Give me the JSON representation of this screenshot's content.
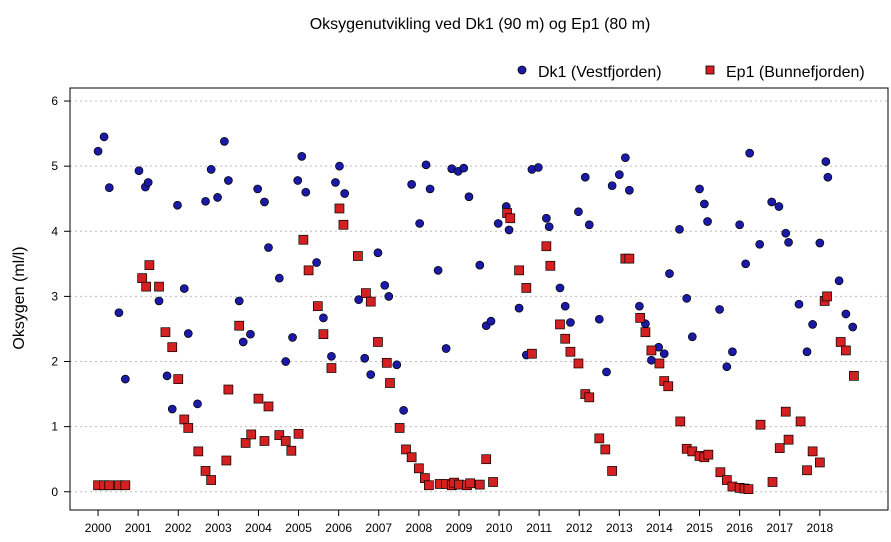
{
  "chart_data": {
    "type": "scatter",
    "title": "Oksygenutvikling ved Dk1 (90 m) og Ep1 (80 m)",
    "xlabel": "",
    "ylabel": "Oksygen (ml/l)",
    "xlim": [
      1999.3,
      2019.7
    ],
    "ylim": [
      -0.28,
      6.2
    ],
    "x_ticks": [
      2000,
      2001,
      2002,
      2003,
      2004,
      2005,
      2006,
      2007,
      2008,
      2009,
      2010,
      2011,
      2012,
      2013,
      2014,
      2015,
      2016,
      2017,
      2018
    ],
    "x_tick_labels": [
      "2000",
      "2001",
      "2002",
      "2003",
      "2004",
      "2005",
      "2006",
      "2007",
      "2008",
      "2009",
      "2010",
      "2011",
      "2012",
      "2013",
      "2014",
      "2015",
      "2016",
      "2017",
      "2018"
    ],
    "y_ticks": [
      0,
      1,
      2,
      3,
      4,
      5,
      6
    ],
    "y_tick_labels": [
      "0",
      "1",
      "2",
      "3",
      "4",
      "5",
      "6"
    ],
    "grid": "horizontal dotted",
    "legend_position": "top-right",
    "series": [
      {
        "name": "Dk1 (Vestfjorden)",
        "marker": "circle",
        "color": "#1a1aa6",
        "x": [
          2000.0,
          2000.15,
          2000.28,
          2000.52,
          2000.68,
          2001.02,
          2001.18,
          2001.25,
          2001.52,
          2001.72,
          2001.85,
          2001.98,
          2002.15,
          2002.25,
          2002.48,
          2002.68,
          2002.82,
          2002.98,
          2003.15,
          2003.25,
          2003.52,
          2003.62,
          2003.8,
          2003.98,
          2004.15,
          2004.25,
          2004.52,
          2004.68,
          2004.85,
          2004.98,
          2005.08,
          2005.18,
          2005.45,
          2005.62,
          2005.82,
          2005.92,
          2006.02,
          2006.15,
          2006.5,
          2006.65,
          2006.8,
          2006.98,
          2007.15,
          2007.25,
          2007.45,
          2007.62,
          2007.82,
          2008.02,
          2008.18,
          2008.28,
          2008.48,
          2008.68,
          2008.82,
          2008.98,
          2009.12,
          2009.25,
          2009.52,
          2009.68,
          2009.8,
          2009.98,
          2010.18,
          2010.25,
          2010.5,
          2010.68,
          2010.82,
          2010.98,
          2011.18,
          2011.25,
          2011.52,
          2011.65,
          2011.78,
          2011.98,
          2012.15,
          2012.25,
          2012.5,
          2012.68,
          2012.82,
          2013.0,
          2013.15,
          2013.25,
          2013.5,
          2013.65,
          2013.8,
          2013.98,
          2014.12,
          2014.25,
          2014.5,
          2014.68,
          2014.82,
          2015.0,
          2015.12,
          2015.2,
          2015.5,
          2015.68,
          2015.82,
          2016.0,
          2016.15,
          2016.25,
          2016.5,
          2016.8,
          2016.98,
          2017.15,
          2017.22,
          2017.48,
          2017.68,
          2017.82,
          2018.0,
          2018.15,
          2018.2,
          2018.48,
          2018.65,
          2018.82
        ],
        "y": [
          5.23,
          5.45,
          4.67,
          2.75,
          1.73,
          4.93,
          4.68,
          4.75,
          2.93,
          1.78,
          1.27,
          4.4,
          3.12,
          2.43,
          1.35,
          4.46,
          4.95,
          4.52,
          5.38,
          4.78,
          2.93,
          2.3,
          2.42,
          4.65,
          4.45,
          3.75,
          3.28,
          2.0,
          2.37,
          4.78,
          5.15,
          4.6,
          3.52,
          2.67,
          2.08,
          4.75,
          5.0,
          4.58,
          2.95,
          2.05,
          1.8,
          3.67,
          3.17,
          3.0,
          1.95,
          1.25,
          4.72,
          4.12,
          5.02,
          4.65,
          3.4,
          2.2,
          4.96,
          4.92,
          4.97,
          4.53,
          3.48,
          2.55,
          2.62,
          4.12,
          4.38,
          4.02,
          2.82,
          2.1,
          4.95,
          4.98,
          4.2,
          4.07,
          3.13,
          2.85,
          2.6,
          4.3,
          4.83,
          4.1,
          2.65,
          1.84,
          4.7,
          4.87,
          5.13,
          4.63,
          2.85,
          2.58,
          2.02,
          2.22,
          2.12,
          3.35,
          4.03,
          2.97,
          2.38,
          4.65,
          4.42,
          4.15,
          2.8,
          1.92,
          2.15,
          4.1,
          3.5,
          5.2,
          3.8,
          4.45,
          4.38,
          3.97,
          3.83,
          2.88,
          2.15,
          2.57,
          3.82,
          5.07,
          4.83,
          3.24,
          2.73,
          2.53
        ]
      },
      {
        "name": "Ep1 (Bunnefjorden)",
        "marker": "square",
        "color": "#d42020",
        "x": [
          2000.0,
          2000.15,
          2000.28,
          2000.52,
          2000.68,
          2001.1,
          2001.2,
          2001.28,
          2001.52,
          2001.68,
          2001.85,
          2002.0,
          2002.15,
          2002.25,
          2002.5,
          2002.68,
          2002.82,
          2003.2,
          2003.25,
          2003.52,
          2003.68,
          2003.82,
          2004.0,
          2004.15,
          2004.25,
          2004.52,
          2004.68,
          2004.82,
          2005.0,
          2005.12,
          2005.25,
          2005.48,
          2005.62,
          2005.82,
          2006.02,
          2006.12,
          2006.48,
          2006.68,
          2006.8,
          2006.98,
          2007.2,
          2007.28,
          2007.52,
          2007.68,
          2007.82,
          2008.0,
          2008.15,
          2008.25,
          2008.52,
          2008.68,
          2008.82,
          2008.88,
          2009.0,
          2009.2,
          2009.28,
          2009.52,
          2009.68,
          2009.85,
          2010.2,
          2010.28,
          2010.5,
          2010.68,
          2010.82,
          2011.18,
          2011.28,
          2011.52,
          2011.65,
          2011.78,
          2011.98,
          2012.15,
          2012.25,
          2012.5,
          2012.65,
          2012.82,
          2013.15,
          2013.25,
          2013.52,
          2013.65,
          2013.8,
          2014.0,
          2014.12,
          2014.22,
          2014.52,
          2014.68,
          2014.82,
          2015.0,
          2015.12,
          2015.22,
          2015.52,
          2015.68,
          2015.82,
          2016.0,
          2016.12,
          2016.22,
          2016.52,
          2016.82,
          2017.0,
          2017.15,
          2017.22,
          2017.52,
          2017.68,
          2017.82,
          2018.0,
          2018.12,
          2018.18,
          2018.52,
          2018.65,
          2018.85
        ],
        "y": [
          0.1,
          0.1,
          0.1,
          0.1,
          0.1,
          3.28,
          3.15,
          3.48,
          3.15,
          2.45,
          2.22,
          1.73,
          1.11,
          0.98,
          0.62,
          0.32,
          0.18,
          0.48,
          1.57,
          2.55,
          0.75,
          0.88,
          1.43,
          0.78,
          1.31,
          0.87,
          0.78,
          0.63,
          0.89,
          3.87,
          3.4,
          2.85,
          2.42,
          1.9,
          4.35,
          4.1,
          3.62,
          3.05,
          2.92,
          2.3,
          1.98,
          1.67,
          0.98,
          0.65,
          0.53,
          0.36,
          0.21,
          0.1,
          0.12,
          0.12,
          0.1,
          0.14,
          0.11,
          0.1,
          0.13,
          0.11,
          0.5,
          0.15,
          4.28,
          4.2,
          3.4,
          3.13,
          2.12,
          3.77,
          3.47,
          2.57,
          2.35,
          2.15,
          1.97,
          1.5,
          1.45,
          0.82,
          0.65,
          0.32,
          3.58,
          3.58,
          2.67,
          2.45,
          2.17,
          1.97,
          1.7,
          1.62,
          1.08,
          0.66,
          0.62,
          0.55,
          0.53,
          0.57,
          0.3,
          0.18,
          0.08,
          0.06,
          0.05,
          0.04,
          1.03,
          0.15,
          0.67,
          1.23,
          0.8,
          1.08,
          0.33,
          0.62,
          0.45,
          2.93,
          3.0,
          2.3,
          2.17,
          1.78
        ]
      }
    ]
  }
}
